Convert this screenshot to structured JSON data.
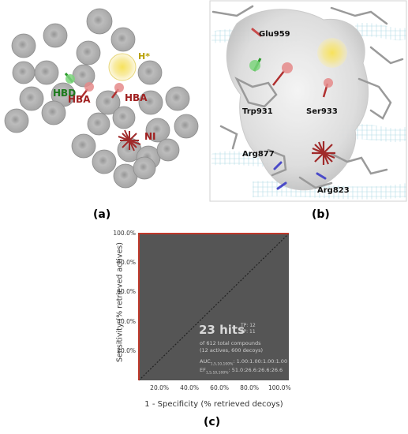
{
  "panel_a": {
    "label": "(a)",
    "features": {
      "hbd": "HBD",
      "hba_1": "HBA",
      "hba_2": "HBA",
      "hydrophobic": "H*",
      "ni": "NI"
    }
  },
  "panel_b": {
    "label": "(b)",
    "residues": {
      "glu959": "Glu959",
      "trp931": "Trp931",
      "ser933": "Ser933",
      "arg877": "Arg877",
      "arg823": "Arg823"
    }
  },
  "panel_c": {
    "label": "(c)",
    "hits_label": "23 hits",
    "tp": "TP: 12",
    "fp": "FP: 11",
    "total_line1": "of 612 total compounds",
    "total_line2": "(12 actives, 600 decoys)",
    "auc_label": "AUC",
    "auc_sub": "1,5,10,100%",
    "auc_values": ": 1.00:1.00:1.00:1.00",
    "ef_label": "EF",
    "ef_sub": "1,5,10,100%",
    "ef_values": ": 51.0:26.6:26.6:26.6",
    "colors": {
      "plot_bg": "#555555",
      "frame": "#c0392b",
      "diagonal": "#222222"
    }
  },
  "chart_data": {
    "type": "line",
    "xlabel": "1 - Specificity (% retrieved decoys)",
    "ylabel": "Sensitivity (% retrieved actives)",
    "xlim": [
      0,
      100
    ],
    "ylim": [
      0,
      100
    ],
    "x_ticks": [
      "20.0%",
      "40.0%",
      "60.0%",
      "80.0%",
      "100.0%"
    ],
    "y_ticks": [
      "20.0%",
      "40.0%",
      "60.0%",
      "80.0%",
      "100.0%"
    ],
    "series": [
      {
        "values": [
          [
            0,
            0
          ],
          [
            0,
            100
          ],
          [
            100,
            100
          ]
        ]
      },
      {
        "values": [
          [
            0,
            0
          ],
          [
            100,
            100
          ]
        ]
      }
    ]
  }
}
